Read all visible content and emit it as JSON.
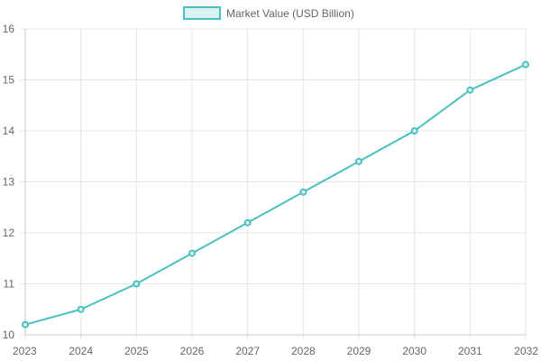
{
  "chart_data": {
    "type": "line",
    "x": [
      "2023",
      "2024",
      "2025",
      "2026",
      "2027",
      "2028",
      "2029",
      "2030",
      "2031",
      "2032"
    ],
    "series": [
      {
        "name": "Market Value (USD Billion)",
        "values": [
          10.2,
          10.5,
          11.0,
          11.6,
          12.2,
          12.8,
          13.4,
          14.0,
          14.8,
          15.3
        ],
        "color": "#4bc0c0",
        "fill": "#dbf2f2"
      }
    ],
    "ylim": [
      10,
      16
    ],
    "yticks": [
      "10",
      "11",
      "12",
      "13",
      "14",
      "15",
      "16"
    ],
    "grid": true,
    "legend": "top"
  }
}
